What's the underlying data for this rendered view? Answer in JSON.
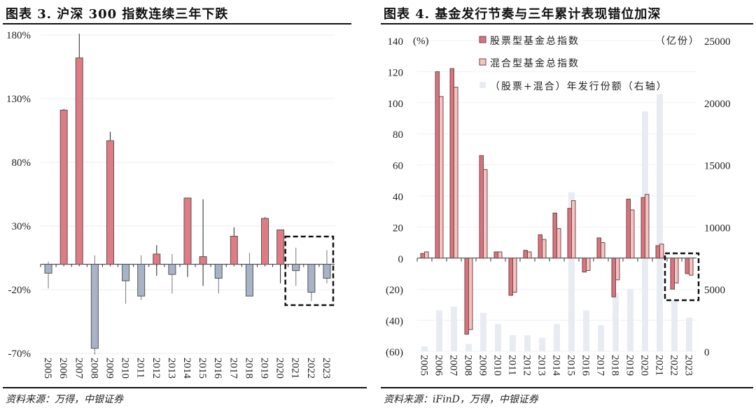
{
  "left": {
    "title": "图表 3. 沪深 300 指数连续三年下跌",
    "source": "资料来源：万得，中银证券"
  },
  "right": {
    "title": "图表 4. 基金发行节奏与三年累计表现错位加深",
    "source": "资料来源：iFinD，万得，中银证券"
  },
  "colors": {
    "positive": "#e07b84",
    "negative": "#a9b3c6",
    "equity": "#d9737e",
    "hybrid": "#f6c3bf",
    "issuance": "#e8ecf2",
    "neg_label": "#d42a2a"
  },
  "chart_data": [
    {
      "type": "bar",
      "title": "沪深 300 指数连续三年下跌",
      "categories": [
        "2005",
        "2006",
        "2007",
        "2008",
        "2009",
        "2010",
        "2011",
        "2012",
        "2013",
        "2014",
        "2015",
        "2016",
        "2017",
        "2018",
        "2019",
        "2020",
        "2021",
        "2022",
        "2023"
      ],
      "values": [
        -7,
        121,
        162,
        -66,
        97,
        -13,
        -25,
        8,
        -8,
        52,
        6,
        -11,
        22,
        -25,
        36,
        27,
        -5,
        -22,
        -11
      ],
      "error_high": [
        2,
        122,
        181,
        7,
        104,
        -13,
        7,
        15,
        8,
        52,
        51,
        0,
        29,
        9,
        37,
        27,
        13,
        0,
        11
      ],
      "error_low": [
        -19,
        121,
        162,
        -71,
        97,
        -31,
        -28,
        -9,
        -23,
        -10,
        -17,
        -23,
        22,
        -20,
        36,
        -15,
        -17,
        -29,
        -15
      ],
      "yticks": [
        "180%",
        "130%",
        "80%",
        "30%",
        "-20%",
        "-70%"
      ],
      "ylim": [
        -70,
        180
      ],
      "highlight": [
        "2021",
        "2022",
        "2023"
      ],
      "grid": true
    },
    {
      "type": "bar",
      "title": "基金发行节奏与三年累计表现错位加深",
      "categories": [
        "2005",
        "2006",
        "2007",
        "2008",
        "2009",
        "2010",
        "2011",
        "2012",
        "2013",
        "2014",
        "2015",
        "2016",
        "2017",
        "2018",
        "2019",
        "2020",
        "2021",
        "2022",
        "2023"
      ],
      "series": [
        {
          "name": "股票型基金总指数",
          "axis": "left",
          "values": [
            3,
            120,
            122,
            -49,
            66,
            4,
            -24,
            5,
            15,
            29,
            32,
            -9,
            13,
            -25,
            38,
            39,
            8,
            -20,
            -10
          ]
        },
        {
          "name": "混合型基金总指数",
          "axis": "left",
          "values": [
            4,
            104,
            110,
            -46,
            57,
            4,
            -22,
            4,
            12,
            19,
            37,
            -8,
            10,
            -14,
            31,
            41,
            9,
            -16,
            -11
          ]
        },
        {
          "name": "（股票+混合）年发行份额（右轴）",
          "axis": "right",
          "values": [
            400,
            3300,
            3600,
            600,
            3100,
            2200,
            1300,
            1300,
            1100,
            2200,
            12800,
            3300,
            2100,
            4700,
            5000,
            19300,
            20700,
            4100,
            2700
          ]
        }
      ],
      "left_unit": "(%)",
      "right_unit": "（亿份）",
      "left_yticks": [
        "140",
        "120",
        "100",
        "80",
        "60",
        "40",
        "20",
        "0",
        "(20)",
        "(40)",
        "(60)"
      ],
      "right_yticks": [
        "25000",
        "20000",
        "15000",
        "10000",
        "5000",
        "0"
      ],
      "ylim_left": [
        -60,
        140
      ],
      "ylim_right": [
        0,
        25000
      ],
      "highlight": [
        "2022",
        "2023"
      ],
      "grid": true
    }
  ]
}
